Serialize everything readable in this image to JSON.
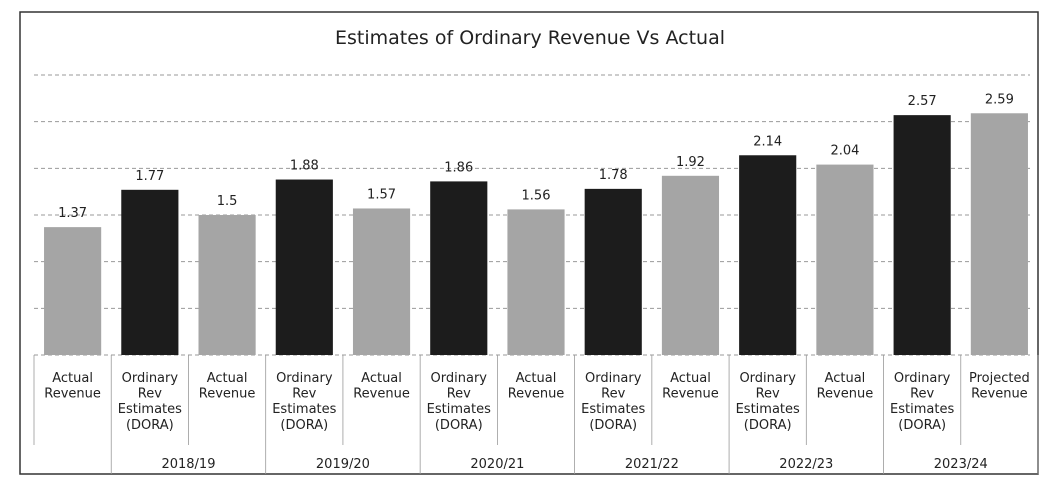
{
  "chart_data": {
    "type": "bar",
    "title": "Estimates of Ordinary Revenue Vs Actual",
    "categories": [
      "Actual\nRevenue",
      "Ordinary\nRev\nEstimates\n(DORA)",
      "Actual\nRevenue",
      "Ordinary\nRev\nEstimates\n(DORA)",
      "Actual\nRevenue",
      "Ordinary\nRev\nEstimates\n(DORA)",
      "Actual\nRevenue",
      "Ordinary\nRev\nEstimates\n(DORA)",
      "Actual\nRevenue",
      "Ordinary\nRev\nEstimates\n(DORA)",
      "Actual\nRevenue",
      "Ordinary\nRev\nEstimates\n(DORA)",
      "Projected\nRevenue"
    ],
    "groups": [
      "2018/19",
      "2019/20",
      "2020/21",
      "2021/22",
      "2022/23",
      "2023/24"
    ],
    "values": [
      1.37,
      1.77,
      1.5,
      1.88,
      1.57,
      1.86,
      1.56,
      1.78,
      1.92,
      2.14,
      2.04,
      2.57,
      2.59
    ],
    "colors": [
      "#a5a5a5",
      "#1c1c1c",
      "#a5a5a5",
      "#1c1c1c",
      "#a5a5a5",
      "#1c1c1c",
      "#a5a5a5",
      "#1c1c1c",
      "#a5a5a5",
      "#1c1c1c",
      "#a5a5a5",
      "#1c1c1c",
      "#a5a5a5"
    ],
    "ylim": [
      0,
      3
    ],
    "yticks": [
      0,
      0.5,
      1,
      1.5,
      2,
      2.5,
      3
    ],
    "grid": true
  }
}
